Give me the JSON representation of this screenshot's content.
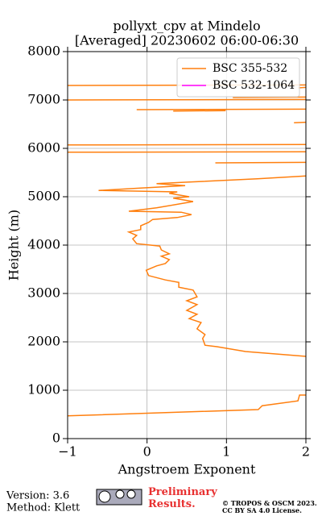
{
  "chart_data": {
    "type": "line",
    "title": [
      "pollyxt_cpv at Mindelo",
      "[Averaged] 20230602 06:00-06:30"
    ],
    "xlabel": "Angstroem Exponent",
    "ylabel": "Height (m)",
    "xlim": [
      -1,
      2
    ],
    "xticks": [
      {
        "value": -1,
        "label": "−1"
      },
      0,
      1,
      2
    ],
    "ylim": [
      0,
      8000
    ],
    "yticks": [
      0,
      1000,
      2000,
      3000,
      4000,
      5000,
      6000,
      7000,
      8000
    ],
    "grid": true,
    "legend": "upper right",
    "y": [
      470,
      600,
      680,
      780,
      900,
      900,
      null,
      1700,
      1800,
      1900,
      1930,
      2070,
      2150,
      2270,
      2400,
      2480,
      2570,
      2650,
      2770,
      2850,
      2930,
      3070,
      3130,
      3230,
      3280,
      3370,
      3480,
      3570,
      3620,
      3700,
      3770,
      3820,
      3900,
      3980,
      4030,
      4130,
      4200,
      4270,
      4320,
      4400,
      4470,
      4530,
      4570,
      4630,
      4680,
      4700,
      4770,
      4900,
      4970,
      5000,
      5070,
      5100,
      5130,
      5180,
      5230,
      5270,
      5300,
      5370,
      5430,
      null,
      5700,
      5710,
      null,
      5920,
      5930,
      null,
      6070,
      6080,
      null,
      6530,
      6540,
      null,
      6770,
      6780,
      null,
      6800,
      6810,
      null,
      7000,
      7010,
      null,
      7050,
      7060,
      null,
      7250,
      7260,
      null,
      7300,
      7310
    ],
    "series": [
      {
        "name": "BSC 355-532",
        "color": "#ff7f0e",
        "values": [
          -1,
          1.4,
          1.45,
          1.9,
          1.92,
          2.0,
          null,
          2.0,
          1.24,
          0.88,
          0.73,
          0.7,
          0.73,
          0.63,
          0.68,
          0.53,
          0.63,
          0.5,
          0.63,
          0.5,
          0.63,
          0.58,
          0.4,
          0.4,
          0.23,
          0.02,
          -0.01,
          0.12,
          0.23,
          0.28,
          0.18,
          0.28,
          0.18,
          0.16,
          -0.13,
          -0.18,
          -0.13,
          -0.23,
          -0.08,
          -0.08,
          0.02,
          0.07,
          0.38,
          0.56,
          0.43,
          -0.23,
          0.12,
          0.58,
          0.33,
          0.53,
          0.28,
          0.38,
          -0.61,
          -0.08,
          0.48,
          0.12,
          0.48,
          1.39,
          2.0,
          null,
          0.86,
          2.0,
          null,
          -1,
          2.0,
          null,
          -1,
          2.0,
          null,
          1.85,
          2.0,
          null,
          0.33,
          0.99,
          null,
          -0.13,
          2.0,
          null,
          -1,
          2.0,
          null,
          1.08,
          2.0,
          null,
          1.9,
          2.0,
          null,
          -1,
          2.0
        ]
      },
      {
        "name": "BSC 532-1064",
        "color": "#ff00ff",
        "values": [
          null,
          null,
          null,
          null,
          null,
          null,
          null,
          null,
          null,
          null,
          null,
          null,
          null,
          null,
          null,
          null,
          null,
          null,
          null,
          null,
          null,
          null,
          null,
          null,
          null,
          null,
          null,
          null,
          null,
          null,
          null,
          null,
          null,
          null,
          null,
          null,
          null,
          null,
          null,
          null,
          null,
          null,
          null,
          null,
          null,
          null,
          null,
          null,
          null,
          null,
          null,
          null,
          null,
          null,
          null,
          null,
          null,
          null,
          null,
          null,
          null,
          null,
          null,
          null,
          null,
          null,
          null,
          null,
          null,
          null,
          null,
          null,
          null,
          null,
          null,
          null,
          null,
          null,
          null,
          null,
          null,
          null,
          null,
          null,
          null,
          null,
          null,
          null,
          null
        ]
      }
    ]
  },
  "footer": {
    "version": "Version: 3.6",
    "method": "Method: Klett",
    "status": "Preliminary Results.",
    "copyright": "© TROPOS & OSCM 2023.",
    "license": "CC BY SA 4.0 License."
  }
}
